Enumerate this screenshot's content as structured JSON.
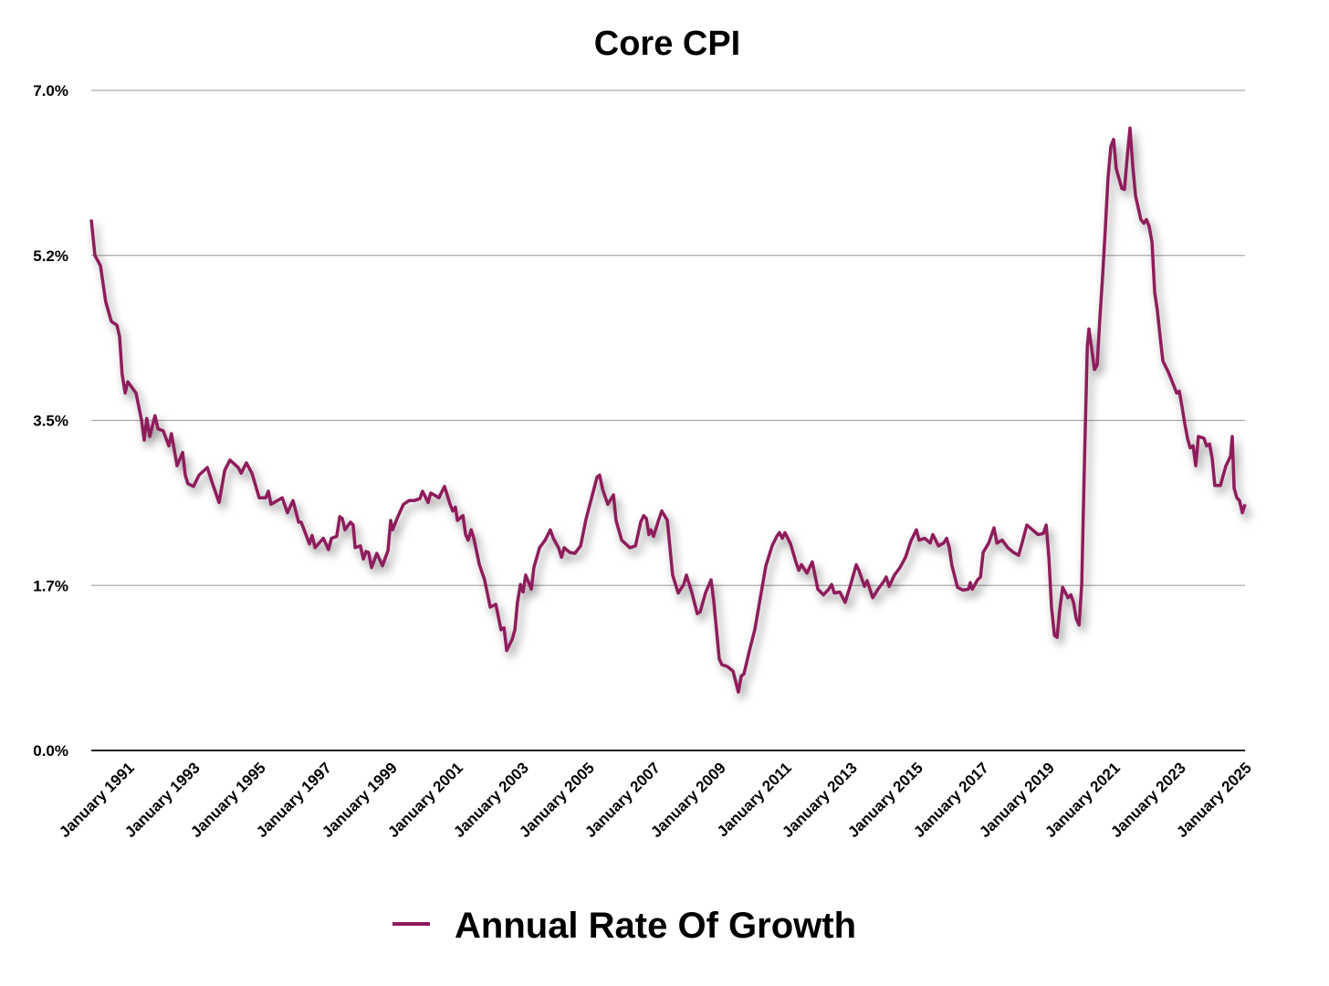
{
  "chart_data": {
    "type": "line",
    "title": "Core CPI",
    "xlabel": "",
    "ylabel": "",
    "ylim": [
      0,
      7
    ],
    "xlim": [
      1990,
      2025.11
    ],
    "yticks": [
      0,
      1.75,
      3.5,
      5.25,
      7
    ],
    "ytick_labels": [
      "0.0%",
      "1.7%",
      "3.5%",
      "5.2%",
      "7.0%"
    ],
    "xtick_years": [
      1991,
      1993,
      1995,
      1997,
      1999,
      2001,
      2003,
      2005,
      2007,
      2009,
      2011,
      2013,
      2015,
      2017,
      2019,
      2021,
      2023,
      2025
    ],
    "xtick_labels": [
      "January 1991",
      "January 1993",
      "January 1995",
      "January 1997",
      "January 1999",
      "January 2001",
      "January 2003",
      "January 2005",
      "January 2007",
      "January 2009",
      "January 2011",
      "January 2013",
      "January 2015",
      "January 2017",
      "January 2019",
      "January 2021",
      "January 2023",
      "January 2025"
    ],
    "grid": true,
    "legend_position": "bottom-center",
    "color": "#8e1a5c",
    "series": [
      {
        "name": "Annual Rate Of Growth",
        "x": [
          1990.0,
          1990.11,
          1990.28,
          1990.44,
          1990.61,
          1990.78,
          1990.86,
          1990.94,
          1991.03,
          1991.11,
          1991.36,
          1991.53,
          1991.61,
          1991.69,
          1991.78,
          1991.94,
          1992.03,
          1992.19,
          1992.36,
          1992.44,
          1992.61,
          1992.78,
          1992.86,
          1992.94,
          1993.11,
          1993.28,
          1993.53,
          1993.69,
          1993.89,
          1994.06,
          1994.22,
          1994.47,
          1994.56,
          1994.72,
          1994.89,
          1995.11,
          1995.31,
          1995.39,
          1995.47,
          1995.81,
          1995.97,
          1996.14,
          1996.31,
          1996.39,
          1996.64,
          1996.72,
          1996.81,
          1997.06,
          1997.22,
          1997.31,
          1997.47,
          1997.56,
          1997.64,
          1997.72,
          1997.89,
          1997.97,
          1998.03,
          1998.19,
          1998.28,
          1998.36,
          1998.44,
          1998.53,
          1998.69,
          1998.86,
          1999.03,
          1999.11,
          1999.17,
          1999.33,
          1999.5,
          1999.67,
          1999.83,
          2000.0,
          2000.08,
          2000.25,
          2000.33,
          2000.58,
          2000.75,
          2000.92,
          2001.0,
          2001.08,
          2001.14,
          2001.31,
          2001.39,
          2001.47,
          2001.56,
          2001.64,
          2001.81,
          2001.97,
          2002.14,
          2002.31,
          2002.47,
          2002.56,
          2002.64,
          2002.81,
          2002.89,
          2002.97,
          2003.06,
          2003.14,
          2003.22,
          2003.39,
          2003.47,
          2003.64,
          2003.81,
          2003.97,
          2004.06,
          2004.22,
          2004.31,
          2004.39,
          2004.56,
          2004.72,
          2004.89,
          2005.06,
          2005.22,
          2005.39,
          2005.47,
          2005.56,
          2005.72,
          2005.89,
          2005.97,
          2006.14,
          2006.39,
          2006.56,
          2006.72,
          2006.81,
          2006.89,
          2006.97,
          2007.03,
          2007.11,
          2007.28,
          2007.36,
          2007.53,
          2007.61,
          2007.69,
          2007.86,
          2008.03,
          2008.11,
          2008.28,
          2008.44,
          2008.53,
          2008.69,
          2008.86,
          2008.94,
          2009.11,
          2009.19,
          2009.36,
          2009.53,
          2009.69,
          2009.78,
          2009.86,
          2010.03,
          2010.19,
          2010.36,
          2010.53,
          2010.72,
          2010.86,
          2010.94,
          2011.03,
          2011.11,
          2011.28,
          2011.44,
          2011.53,
          2011.61,
          2011.78,
          2011.94,
          2012.11,
          2012.28,
          2012.44,
          2012.53,
          2012.61,
          2012.78,
          2012.94,
          2013.11,
          2013.28,
          2013.36,
          2013.53,
          2013.61,
          2013.78,
          2013.94,
          2014.11,
          2014.19,
          2014.28,
          2014.44,
          2014.61,
          2014.78,
          2014.94,
          2015.11,
          2015.19,
          2015.36,
          2015.53,
          2015.61,
          2015.78,
          2015.94,
          2016.03,
          2016.11,
          2016.19,
          2016.36,
          2016.53,
          2016.69,
          2016.75,
          2016.81,
          2016.97,
          2017.06,
          2017.14,
          2017.31,
          2017.47,
          2017.56,
          2017.72,
          2017.89,
          2018.06,
          2018.22,
          2018.31,
          2018.47,
          2018.64,
          2018.81,
          2018.97,
          2019.06,
          2019.14,
          2019.22,
          2019.31,
          2019.39,
          2019.47,
          2019.56,
          2019.72,
          2019.81,
          2019.89,
          2019.97,
          2020.06,
          2020.14,
          2020.22,
          2020.31,
          2020.36,
          2020.53,
          2020.61,
          2020.69,
          2020.78,
          2020.86,
          2020.94,
          2021.03,
          2021.11,
          2021.19,
          2021.36,
          2021.44,
          2021.53,
          2021.61,
          2021.69,
          2021.78,
          2021.94,
          2022.03,
          2022.11,
          2022.19,
          2022.28,
          2022.36,
          2022.44,
          2022.53,
          2022.61,
          2022.78,
          2022.94,
          2023.03,
          2023.11,
          2023.19,
          2023.28,
          2023.36,
          2023.44,
          2023.53,
          2023.61,
          2023.69,
          2023.86,
          2023.94,
          2024.03,
          2024.11,
          2024.19,
          2024.36,
          2024.53,
          2024.67,
          2024.72,
          2024.78,
          2024.86,
          2024.94,
          2025.03,
          2025.11
        ],
        "values": [
          5.63,
          5.25,
          5.14,
          4.76,
          4.55,
          4.51,
          4.39,
          3.99,
          3.79,
          3.91,
          3.79,
          3.5,
          3.29,
          3.52,
          3.33,
          3.55,
          3.41,
          3.39,
          3.23,
          3.36,
          3.02,
          3.16,
          2.92,
          2.83,
          2.8,
          2.92,
          3.0,
          2.83,
          2.63,
          2.97,
          3.08,
          3.0,
          2.94,
          3.05,
          2.94,
          2.68,
          2.68,
          2.75,
          2.61,
          2.68,
          2.52,
          2.65,
          2.42,
          2.42,
          2.19,
          2.28,
          2.15,
          2.25,
          2.13,
          2.25,
          2.27,
          2.48,
          2.46,
          2.34,
          2.42,
          2.39,
          2.15,
          2.17,
          2.03,
          2.11,
          2.1,
          1.94,
          2.09,
          1.96,
          2.12,
          2.44,
          2.34,
          2.48,
          2.61,
          2.65,
          2.65,
          2.67,
          2.75,
          2.63,
          2.73,
          2.68,
          2.8,
          2.61,
          2.54,
          2.58,
          2.44,
          2.49,
          2.29,
          2.23,
          2.34,
          2.25,
          1.97,
          1.81,
          1.52,
          1.55,
          1.28,
          1.3,
          1.06,
          1.18,
          1.28,
          1.57,
          1.76,
          1.68,
          1.86,
          1.71,
          1.94,
          2.15,
          2.23,
          2.34,
          2.25,
          2.15,
          2.05,
          2.15,
          2.1,
          2.09,
          2.17,
          2.46,
          2.67,
          2.9,
          2.92,
          2.77,
          2.61,
          2.71,
          2.44,
          2.23,
          2.15,
          2.17,
          2.42,
          2.49,
          2.46,
          2.29,
          2.34,
          2.27,
          2.46,
          2.54,
          2.44,
          2.15,
          1.86,
          1.67,
          1.76,
          1.86,
          1.67,
          1.45,
          1.47,
          1.67,
          1.81,
          1.59,
          0.97,
          0.91,
          0.89,
          0.84,
          0.62,
          0.79,
          0.81,
          1.06,
          1.28,
          1.62,
          1.96,
          2.17,
          2.27,
          2.31,
          2.25,
          2.31,
          2.19,
          2.0,
          1.91,
          1.97,
          1.88,
          2.0,
          1.71,
          1.65,
          1.71,
          1.76,
          1.67,
          1.68,
          1.57,
          1.76,
          1.97,
          1.91,
          1.74,
          1.8,
          1.62,
          1.71,
          1.79,
          1.84,
          1.74,
          1.86,
          1.94,
          2.05,
          2.22,
          2.34,
          2.23,
          2.25,
          2.2,
          2.29,
          2.17,
          2.2,
          2.25,
          2.15,
          1.96,
          1.73,
          1.7,
          1.71,
          1.78,
          1.71,
          1.81,
          1.84,
          2.1,
          2.2,
          2.36,
          2.2,
          2.23,
          2.15,
          2.1,
          2.07,
          2.18,
          2.39,
          2.34,
          2.29,
          2.3,
          2.39,
          2.05,
          1.52,
          1.22,
          1.2,
          1.49,
          1.73,
          1.62,
          1.65,
          1.57,
          1.4,
          1.33,
          1.76,
          3.02,
          4.28,
          4.47,
          4.04,
          4.09,
          4.57,
          5.05,
          5.54,
          6.07,
          6.41,
          6.48,
          6.17,
          5.96,
          5.95,
          6.31,
          6.6,
          6.21,
          5.88,
          5.63,
          5.59,
          5.63,
          5.56,
          5.39,
          4.86,
          4.67,
          4.38,
          4.13,
          4.01,
          3.87,
          3.79,
          3.81,
          3.65,
          3.46,
          3.31,
          3.21,
          3.23,
          3.02,
          3.33,
          3.31,
          3.23,
          3.25,
          3.1,
          2.81,
          2.81,
          3.02,
          3.12,
          3.33,
          2.78,
          2.68,
          2.65,
          2.52,
          2.61
        ]
      }
    ]
  }
}
